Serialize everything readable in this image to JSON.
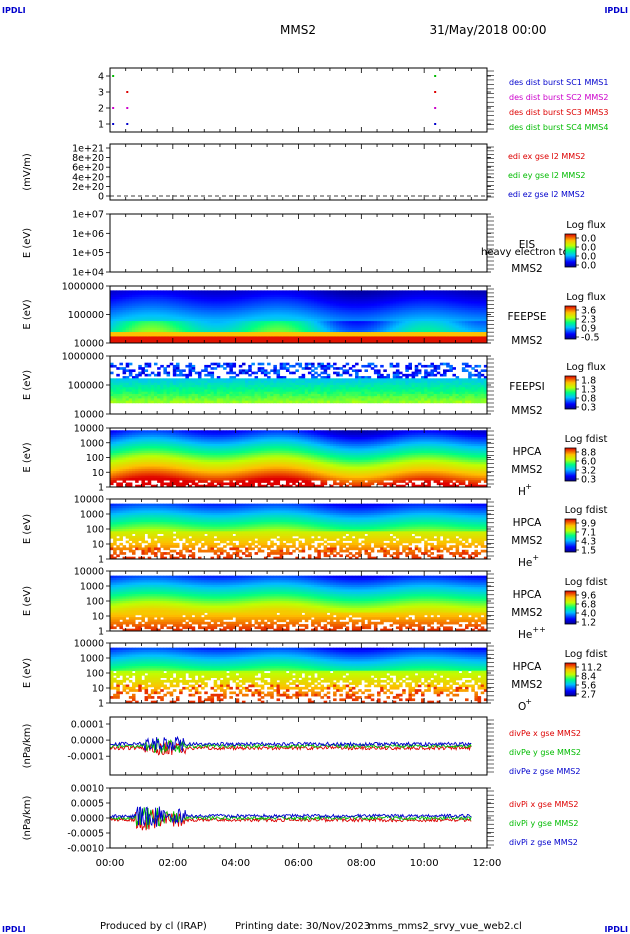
{
  "header": {
    "logo_left": "IPDLI",
    "logo_right": "IPDLI",
    "spacecraft": "MMS2",
    "datetime": "31/May/2018 00:00"
  },
  "footer": {
    "logo_left": "IPDLI",
    "logo_right": "IPDLI",
    "produced_by": "Produced by cl (IRAP)",
    "printing_date": "Printing date: 30/Nov/2023",
    "filename": "mms_mms2_srvy_vue_web2.cl"
  },
  "x_axis": {
    "ticks": [
      "00:00",
      "02:00",
      "04:00",
      "06:00",
      "08:00",
      "10:00",
      "12:00"
    ]
  },
  "colors": {
    "mms1": "#0000cc",
    "mms2": "#cc00cc",
    "mms3": "#dd0000",
    "mms4": "#00bb00",
    "red": "#dd0000",
    "green": "#00bb00",
    "blue": "#0000cc"
  },
  "chart_data": [
    {
      "id": "burst",
      "type": "scatter",
      "ylabel": "",
      "yticks": [
        "4",
        "3",
        "2",
        "1"
      ],
      "ylim": [
        0.5,
        4.5
      ],
      "legend": [
        {
          "text": "des dist burst SC1 MMS1",
          "color": "#0000cc"
        },
        {
          "text": "des dist burst SC2 MMS2",
          "color": "#cc00cc"
        },
        {
          "text": "des dist burst SC3 MMS3",
          "color": "#dd0000"
        },
        {
          "text": "des dist burst SC4 MMS4",
          "color": "#00bb00"
        }
      ],
      "series": [
        {
          "level": 4,
          "color": "#00bb00",
          "x_hours": [
            0.1,
            10.35
          ]
        },
        {
          "level": 3,
          "color": "#dd0000",
          "x_hours": [
            0.55,
            10.35
          ]
        },
        {
          "level": 2,
          "color": "#cc00cc",
          "x_hours": [
            0.1,
            0.55,
            10.35
          ]
        },
        {
          "level": 1,
          "color": "#0000cc",
          "x_hours": [
            0.1,
            0.55,
            10.35
          ]
        }
      ]
    },
    {
      "id": "edi",
      "type": "line",
      "ylabel": "(mV/m)",
      "yticks": [
        "1e+21",
        "8e+20",
        "6e+20",
        "4e+20",
        "2e+20",
        "0"
      ],
      "ylim": [
        0,
        1e+21
      ],
      "legend": [
        {
          "text": "edi ex gse l2 MMS2",
          "color": "#dd0000"
        },
        {
          "text": "edi ey gse l2 MMS2",
          "color": "#00bb00"
        },
        {
          "text": "edi ez gse l2 MMS2",
          "color": "#0000cc"
        }
      ],
      "dashed_zero_line": true
    },
    {
      "id": "eis",
      "type": "heatmap",
      "ylabel": "E (eV)",
      "yticks": [
        "1e+07",
        "1e+06",
        "1e+05",
        "1e+04"
      ],
      "label_lines": [
        "EIS",
        "MMS2"
      ],
      "overlay_text": "heavy electron tof",
      "colorbar_title": "Log flux",
      "colorbar_ticks": [
        "0.0",
        "0.0",
        "0.0",
        "0.0"
      ],
      "empty": true
    },
    {
      "id": "feepse",
      "type": "heatmap",
      "ylabel": "E (eV)",
      "yticks": [
        "1000000",
        "100000",
        "10000"
      ],
      "label_lines": [
        "FEEPSE",
        "MMS2"
      ],
      "colorbar_title": "Log flux",
      "colorbar_ticks": [
        "3.6",
        "2.3",
        "0.9",
        "-0.5"
      ]
    },
    {
      "id": "feepsi",
      "type": "heatmap",
      "ylabel": "E (eV)",
      "yticks": [
        "1000000",
        "100000",
        "10000"
      ],
      "label_lines": [
        "FEEPSI",
        "MMS2"
      ],
      "colorbar_title": "Log flux",
      "colorbar_ticks": [
        "1.8",
        "1.3",
        "0.8",
        "0.3"
      ]
    },
    {
      "id": "hpca_h",
      "type": "heatmap",
      "ylabel": "E (eV)",
      "yticks": [
        "10000",
        "1000",
        "100",
        "10",
        "1"
      ],
      "label_lines": [
        "HPCA",
        "MMS2"
      ],
      "species": "H",
      "species_sup": "+",
      "colorbar_title": "Log fdist",
      "colorbar_ticks": [
        "8.8",
        "6.0",
        "3.2",
        "0.3"
      ]
    },
    {
      "id": "hpca_he1",
      "type": "heatmap",
      "ylabel": "E (eV)",
      "yticks": [
        "10000",
        "1000",
        "100",
        "10",
        "1"
      ],
      "label_lines": [
        "HPCA",
        "MMS2"
      ],
      "species": "He",
      "species_sup": "+",
      "colorbar_title": "Log fdist",
      "colorbar_ticks": [
        "9.9",
        "7.1",
        "4.3",
        "1.5"
      ]
    },
    {
      "id": "hpca_he2",
      "type": "heatmap",
      "ylabel": "E (eV)",
      "yticks": [
        "10000",
        "1000",
        "100",
        "10",
        "1"
      ],
      "label_lines": [
        "HPCA",
        "MMS2"
      ],
      "species": "He",
      "species_sup": "++",
      "colorbar_title": "Log fdist",
      "colorbar_ticks": [
        "9.6",
        "6.8",
        "4.0",
        "1.2"
      ]
    },
    {
      "id": "hpca_o",
      "type": "heatmap",
      "ylabel": "E (eV)",
      "yticks": [
        "10000",
        "1000",
        "100",
        "10",
        "1"
      ],
      "label_lines": [
        "HPCA",
        "MMS2"
      ],
      "species": "O",
      "species_sup": "+",
      "colorbar_title": "Log fdist",
      "colorbar_ticks": [
        "11.2",
        "8.4",
        "5.6",
        "2.7"
      ]
    },
    {
      "id": "divpe",
      "type": "line",
      "ylabel": "(nPa/km)",
      "yticks": [
        "0.0001",
        "0.0000",
        "-0.0001"
      ],
      "ylim": [
        -0.00015,
        0.00015
      ],
      "legend": [
        {
          "text": "divPe x gse MMS2",
          "color": "#dd0000"
        },
        {
          "text": "divPe y gse MMS2",
          "color": "#00bb00"
        },
        {
          "text": "divPe z gse MMS2",
          "color": "#0000cc"
        }
      ]
    },
    {
      "id": "divpi",
      "type": "line",
      "ylabel": "(nPa/km)",
      "yticks": [
        "0.0010",
        "0.0005",
        "0.0000",
        "-0.0005",
        "-0.0010"
      ],
      "ylim": [
        -0.0012,
        0.0012
      ],
      "legend": [
        {
          "text": "divPi x gse MMS2",
          "color": "#dd0000"
        },
        {
          "text": "divPi y gse MMS2",
          "color": "#00bb00"
        },
        {
          "text": "divPi z gse MMS2",
          "color": "#0000cc"
        }
      ]
    }
  ]
}
